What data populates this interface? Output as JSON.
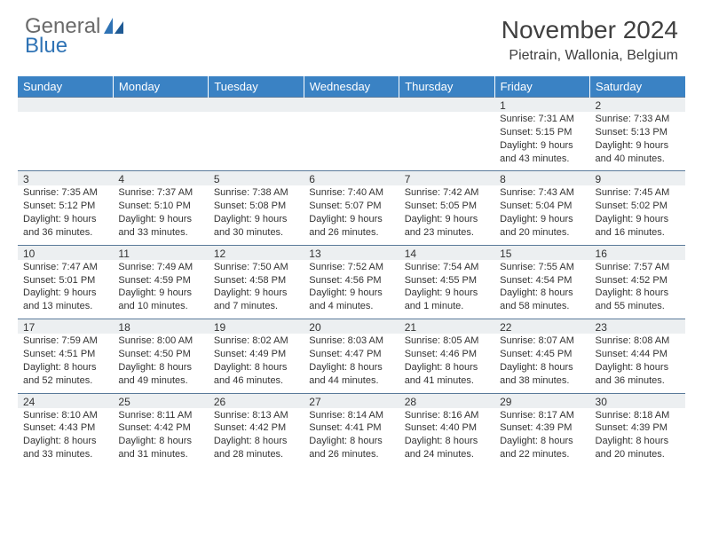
{
  "logo": {
    "text1": "General",
    "text2": "Blue"
  },
  "title": "November 2024",
  "location": "Pietrain, Wallonia, Belgium",
  "colors": {
    "header_bg": "#3a82c4",
    "header_text": "#ffffff",
    "daynum_bg": "#eceff1",
    "row_border": "#5a7a9a",
    "body_text": "#333333",
    "logo_grey": "#6a6a6a",
    "logo_blue": "#2f73b5"
  },
  "weekdays": [
    "Sunday",
    "Monday",
    "Tuesday",
    "Wednesday",
    "Thursday",
    "Friday",
    "Saturday"
  ],
  "weeks": [
    [
      null,
      null,
      null,
      null,
      null,
      {
        "n": "1",
        "sr": "7:31 AM",
        "ss": "5:15 PM",
        "dl": "9 hours and 43 minutes."
      },
      {
        "n": "2",
        "sr": "7:33 AM",
        "ss": "5:13 PM",
        "dl": "9 hours and 40 minutes."
      }
    ],
    [
      {
        "n": "3",
        "sr": "7:35 AM",
        "ss": "5:12 PM",
        "dl": "9 hours and 36 minutes."
      },
      {
        "n": "4",
        "sr": "7:37 AM",
        "ss": "5:10 PM",
        "dl": "9 hours and 33 minutes."
      },
      {
        "n": "5",
        "sr": "7:38 AM",
        "ss": "5:08 PM",
        "dl": "9 hours and 30 minutes."
      },
      {
        "n": "6",
        "sr": "7:40 AM",
        "ss": "5:07 PM",
        "dl": "9 hours and 26 minutes."
      },
      {
        "n": "7",
        "sr": "7:42 AM",
        "ss": "5:05 PM",
        "dl": "9 hours and 23 minutes."
      },
      {
        "n": "8",
        "sr": "7:43 AM",
        "ss": "5:04 PM",
        "dl": "9 hours and 20 minutes."
      },
      {
        "n": "9",
        "sr": "7:45 AM",
        "ss": "5:02 PM",
        "dl": "9 hours and 16 minutes."
      }
    ],
    [
      {
        "n": "10",
        "sr": "7:47 AM",
        "ss": "5:01 PM",
        "dl": "9 hours and 13 minutes."
      },
      {
        "n": "11",
        "sr": "7:49 AM",
        "ss": "4:59 PM",
        "dl": "9 hours and 10 minutes."
      },
      {
        "n": "12",
        "sr": "7:50 AM",
        "ss": "4:58 PM",
        "dl": "9 hours and 7 minutes."
      },
      {
        "n": "13",
        "sr": "7:52 AM",
        "ss": "4:56 PM",
        "dl": "9 hours and 4 minutes."
      },
      {
        "n": "14",
        "sr": "7:54 AM",
        "ss": "4:55 PM",
        "dl": "9 hours and 1 minute."
      },
      {
        "n": "15",
        "sr": "7:55 AM",
        "ss": "4:54 PM",
        "dl": "8 hours and 58 minutes."
      },
      {
        "n": "16",
        "sr": "7:57 AM",
        "ss": "4:52 PM",
        "dl": "8 hours and 55 minutes."
      }
    ],
    [
      {
        "n": "17",
        "sr": "7:59 AM",
        "ss": "4:51 PM",
        "dl": "8 hours and 52 minutes."
      },
      {
        "n": "18",
        "sr": "8:00 AM",
        "ss": "4:50 PM",
        "dl": "8 hours and 49 minutes."
      },
      {
        "n": "19",
        "sr": "8:02 AM",
        "ss": "4:49 PM",
        "dl": "8 hours and 46 minutes."
      },
      {
        "n": "20",
        "sr": "8:03 AM",
        "ss": "4:47 PM",
        "dl": "8 hours and 44 minutes."
      },
      {
        "n": "21",
        "sr": "8:05 AM",
        "ss": "4:46 PM",
        "dl": "8 hours and 41 minutes."
      },
      {
        "n": "22",
        "sr": "8:07 AM",
        "ss": "4:45 PM",
        "dl": "8 hours and 38 minutes."
      },
      {
        "n": "23",
        "sr": "8:08 AM",
        "ss": "4:44 PM",
        "dl": "8 hours and 36 minutes."
      }
    ],
    [
      {
        "n": "24",
        "sr": "8:10 AM",
        "ss": "4:43 PM",
        "dl": "8 hours and 33 minutes."
      },
      {
        "n": "25",
        "sr": "8:11 AM",
        "ss": "4:42 PM",
        "dl": "8 hours and 31 minutes."
      },
      {
        "n": "26",
        "sr": "8:13 AM",
        "ss": "4:42 PM",
        "dl": "8 hours and 28 minutes."
      },
      {
        "n": "27",
        "sr": "8:14 AM",
        "ss": "4:41 PM",
        "dl": "8 hours and 26 minutes."
      },
      {
        "n": "28",
        "sr": "8:16 AM",
        "ss": "4:40 PM",
        "dl": "8 hours and 24 minutes."
      },
      {
        "n": "29",
        "sr": "8:17 AM",
        "ss": "4:39 PM",
        "dl": "8 hours and 22 minutes."
      },
      {
        "n": "30",
        "sr": "8:18 AM",
        "ss": "4:39 PM",
        "dl": "8 hours and 20 minutes."
      }
    ]
  ],
  "labels": {
    "sunrise": "Sunrise: ",
    "sunset": "Sunset: ",
    "daylight": "Daylight: "
  }
}
